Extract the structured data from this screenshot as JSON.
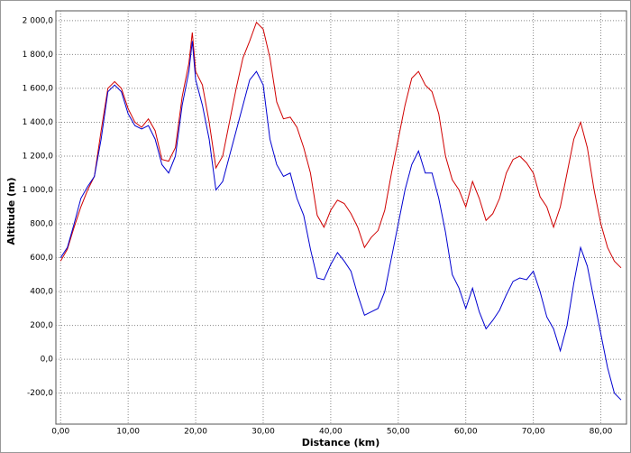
{
  "chart_data": {
    "type": "line",
    "xlabel": "Distance (km)",
    "ylabel": "Altitude (m)",
    "x": [
      0,
      1,
      2,
      3,
      4,
      5,
      6,
      7,
      8,
      9,
      10,
      11,
      12,
      13,
      14,
      15,
      16,
      17,
      18,
      19,
      19.5,
      20,
      21,
      22,
      23,
      24,
      25,
      26,
      27,
      28,
      29,
      30,
      31,
      32,
      33,
      34,
      35,
      36,
      37,
      38,
      39,
      40,
      41,
      42,
      43,
      44,
      45,
      46,
      47,
      48,
      49,
      50,
      51,
      52,
      53,
      54,
      55,
      56,
      57,
      58,
      59,
      60,
      61,
      62,
      63,
      64,
      65,
      66,
      67,
      68,
      69,
      70,
      71,
      72,
      73,
      74,
      75,
      76,
      77,
      78,
      79,
      80,
      81,
      82,
      83
    ],
    "series": [
      {
        "color": "#d00000",
        "values": [
          580,
          650,
          780,
          900,
          1000,
          1080,
          1350,
          1600,
          1640,
          1600,
          1480,
          1400,
          1370,
          1420,
          1350,
          1180,
          1170,
          1250,
          1550,
          1750,
          1930,
          1700,
          1620,
          1400,
          1130,
          1200,
          1400,
          1600,
          1780,
          1880,
          1990,
          1950,
          1780,
          1520,
          1420,
          1430,
          1370,
          1250,
          1100,
          850,
          780,
          880,
          940,
          920,
          860,
          780,
          660,
          720,
          760,
          880,
          1100,
          1300,
          1500,
          1660,
          1700,
          1620,
          1580,
          1450,
          1200,
          1060,
          1000,
          900,
          1050,
          950,
          820,
          860,
          950,
          1100,
          1180,
          1200,
          1160,
          1100,
          960,
          900,
          780,
          900,
          1100,
          1300,
          1400,
          1250,
          1000,
          800,
          660,
          580,
          540
        ]
      },
      {
        "color": "#0000d0",
        "values": [
          600,
          660,
          800,
          950,
          1020,
          1080,
          1300,
          1580,
          1620,
          1580,
          1450,
          1380,
          1360,
          1380,
          1300,
          1150,
          1100,
          1200,
          1500,
          1700,
          1880,
          1650,
          1500,
          1300,
          1000,
          1050,
          1200,
          1350,
          1500,
          1650,
          1700,
          1620,
          1300,
          1150,
          1080,
          1100,
          950,
          850,
          650,
          480,
          470,
          560,
          630,
          580,
          520,
          380,
          260,
          280,
          300,
          400,
          600,
          800,
          1000,
          1150,
          1230,
          1100,
          1100,
          950,
          750,
          500,
          420,
          300,
          420,
          280,
          180,
          230,
          290,
          380,
          460,
          480,
          470,
          520,
          400,
          250,
          180,
          50,
          200,
          450,
          660,
          550,
          350,
          150,
          -50,
          -200,
          -240
        ]
      }
    ],
    "xlim": [
      -0.7,
      83.8
    ],
    "ylim": [
      -383,
      2058
    ],
    "xticks": [
      {
        "value": 0,
        "label": "0,00"
      },
      {
        "value": 10,
        "label": "10,00"
      },
      {
        "value": 20,
        "label": "20,00"
      },
      {
        "value": 30,
        "label": "30,00"
      },
      {
        "value": 40,
        "label": "40,00"
      },
      {
        "value": 50,
        "label": "50,00"
      },
      {
        "value": 60,
        "label": "60,00"
      },
      {
        "value": 70,
        "label": "70,00"
      },
      {
        "value": 80,
        "label": "80,00"
      }
    ],
    "yticks": [
      {
        "value": -200,
        "label": "-200,0"
      },
      {
        "value": 0,
        "label": "0,0"
      },
      {
        "value": 200,
        "label": "200,0"
      },
      {
        "value": 400,
        "label": "400,0"
      },
      {
        "value": 600,
        "label": "600,0"
      },
      {
        "value": 800,
        "label": "800,0"
      },
      {
        "value": 1000,
        "label": "1 000,0"
      },
      {
        "value": 1200,
        "label": "1 200,0"
      },
      {
        "value": 1400,
        "label": "1 400,0"
      },
      {
        "value": 1600,
        "label": "1 600,0"
      },
      {
        "value": 1800,
        "label": "1 800,0"
      },
      {
        "value": 2000,
        "label": "2 000,0"
      }
    ],
    "grid": true
  }
}
